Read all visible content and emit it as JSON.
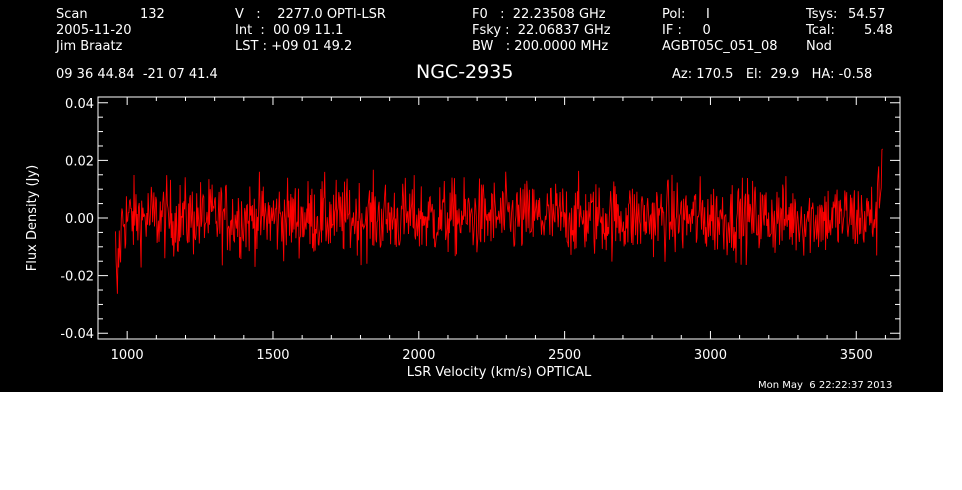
{
  "header": {
    "col1": {
      "scan_label": "Scan",
      "scan_value": "132",
      "date": "2005-11-20",
      "observer": "Jim Braatz"
    },
    "col2": {
      "v_line": "V   :    2277.0 OPTI-LSR",
      "int_line": "Int  :  00 09 11.1",
      "lst_line": "LST : +09 01 49.2"
    },
    "col3": {
      "f0_line": "F0   :  22.23508 GHz",
      "fsky_line": "Fsky :  22.06837 GHz",
      "bw_line": "BW   : 200.0000 MHz"
    },
    "col4": {
      "pol_line": "Pol:     I",
      "if_line": "IF :     0",
      "project": "AGBT05C_051_08"
    },
    "col5": {
      "tsys_label": "Tsys:",
      "tsys_value": "54.57",
      "tcal_label": "Tcal:",
      "tcal_value": "5.48",
      "mode": "Nod"
    },
    "coords": "09 36 44.84  -21 07 41.4",
    "source": "NGC-2935",
    "pointing": "Az: 170.5   El:  29.9   HA: -0.58"
  },
  "timestamp": "Mon May  6 22:22:37 2013",
  "colors": {
    "background": "#000000",
    "spectrum": "#ff0000",
    "axes": "#ffffff"
  },
  "chart_data": {
    "type": "line",
    "title": "NGC-2935",
    "xlabel": "LSR Velocity (km/s) OPTICAL",
    "ylabel": "Flux Density (Jy)",
    "xlim": [
      900,
      3650
    ],
    "ylim": [
      -0.042,
      0.042
    ],
    "x_ticks": [
      1000,
      1500,
      2000,
      2500,
      3000,
      3500
    ],
    "x_tick_labels": [
      "1000",
      "1500",
      "2000",
      "2500",
      "3000",
      "3500"
    ],
    "y_ticks": [
      -0.04,
      -0.02,
      0.0,
      0.02,
      0.04
    ],
    "y_tick_labels": [
      "-0.04",
      "-0.02",
      "0.00",
      "0.02",
      "0.04"
    ],
    "series": [
      {
        "x_start": 960,
        "x_end": 3590,
        "points": 1200,
        "noise_rms": 0.0065,
        "baseline": 0.0,
        "edge_features": [
          {
            "x": 965,
            "y": -0.03
          },
          {
            "x": 975,
            "y": -0.012
          },
          {
            "x": 3580,
            "y": 0.012
          },
          {
            "x": 3590,
            "y": 0.027
          }
        ]
      }
    ],
    "grid": false
  }
}
